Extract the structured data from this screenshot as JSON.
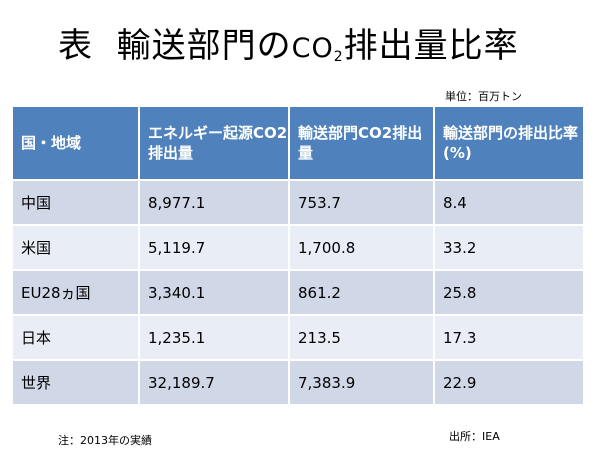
{
  "title": {
    "prefix": "表",
    "main": "輸送部門の",
    "co": "CO",
    "sub": "2",
    "rest": "排出量比率"
  },
  "unit_label": "単位：百万トン",
  "table": {
    "headers": [
      "国・地域",
      "エネルギー起源CO2排出量",
      "輸送部門CO2排出量",
      "輸送部門の排出比率(%)"
    ],
    "rows": [
      [
        "中国",
        "8,977.1",
        "753.7",
        "8.4"
      ],
      [
        "米国",
        "5,119.7",
        "1,700.8",
        "33.2"
      ],
      [
        "EU28ヵ国",
        "3,340.1",
        "861.2",
        "25.8"
      ],
      [
        "日本",
        "1,235.1",
        "213.5",
        "17.3"
      ],
      [
        "世界",
        "32,189.7",
        "7,383.9",
        "22.9"
      ]
    ]
  },
  "note": "注：2013年の実績",
  "source": "出所：IEA",
  "colors": {
    "header_bg": "#4f81bd",
    "row_light": "#e9edf5",
    "row_dark": "#d0d8e8"
  }
}
